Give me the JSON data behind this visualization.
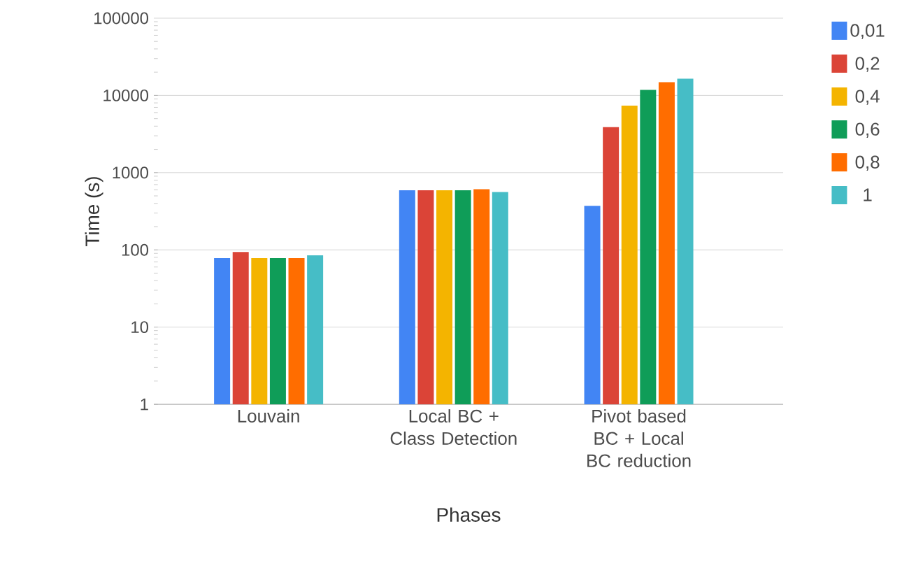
{
  "chart_data": {
    "type": "bar",
    "xlabel": "Phases",
    "ylabel": "Time (s)",
    "categories": [
      "Louvain",
      "Local BC + Class Detection",
      "Pivot based BC + Local BC reduction"
    ],
    "series": [
      {
        "name": "0,01",
        "color": "#4285f4",
        "values": [
          78,
          590,
          372
        ]
      },
      {
        "name": "0,2",
        "color": "#db4437",
        "values": [
          94,
          590,
          3880
        ]
      },
      {
        "name": "0,4",
        "color": "#f4b400",
        "values": [
          78,
          590,
          7360
        ]
      },
      {
        "name": "0,6",
        "color": "#0f9d58",
        "values": [
          78,
          590,
          11800
        ]
      },
      {
        "name": "0,8",
        "color": "#ff6d00",
        "values": [
          78,
          610,
          14800
        ]
      },
      {
        "name": "1",
        "color": "#46bdc6",
        "values": [
          85,
          560,
          16500
        ]
      }
    ],
    "log": "y",
    "ylim": [
      1,
      100000
    ],
    "yticks": [
      1,
      10,
      100,
      1000,
      10000,
      100000
    ],
    "grid": "y",
    "legend": "right"
  }
}
